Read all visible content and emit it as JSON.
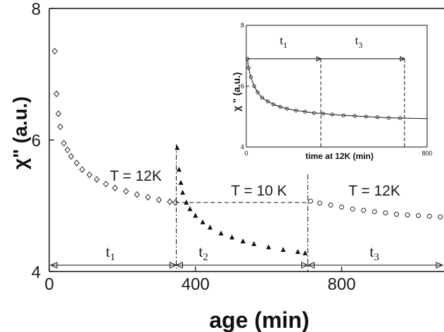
{
  "chart_data": [
    {
      "type": "scatter",
      "title": "",
      "xlabel": "age (min)",
      "ylabel": "χ\" (a.u.)",
      "xlim": [
        0,
        1080
      ],
      "ylim": [
        4,
        8
      ],
      "x_ticks": [
        "0",
        "400",
        "800"
      ],
      "y_ticks": [
        "4",
        "6",
        "8"
      ],
      "grid": false,
      "segments": [
        {
          "marker": "diamond",
          "temperature_label": "T = 12K",
          "interval_label": "t1",
          "x": [
            15,
            20,
            25,
            30,
            40,
            50,
            60,
            75,
            90,
            110,
            130,
            155,
            180,
            210,
            240,
            270,
            300,
            330,
            345
          ],
          "y": [
            7.35,
            6.7,
            6.4,
            6.2,
            5.95,
            5.85,
            5.75,
            5.65,
            5.55,
            5.47,
            5.4,
            5.33,
            5.27,
            5.22,
            5.17,
            5.13,
            5.09,
            5.06,
            5.05
          ]
        },
        {
          "marker": "triangle",
          "temperature_label": "T = 10 K",
          "interval_label": "t2",
          "x": [
            350,
            355,
            360,
            365,
            375,
            385,
            400,
            420,
            440,
            470,
            500,
            530,
            560,
            600,
            640,
            680,
            700
          ],
          "y": [
            5.88,
            5.55,
            5.35,
            5.2,
            5.05,
            4.95,
            4.85,
            4.75,
            4.67,
            4.58,
            4.52,
            4.46,
            4.42,
            4.37,
            4.33,
            4.3,
            4.28
          ]
        },
        {
          "marker": "circle",
          "temperature_label": "T = 12K",
          "interval_label": "t3",
          "x": [
            715,
            740,
            770,
            800,
            830,
            860,
            890,
            920,
            950,
            980,
            1010,
            1040,
            1070
          ],
          "y": [
            5.07,
            5.04,
            5.01,
            4.98,
            4.95,
            4.93,
            4.91,
            4.89,
            4.87,
            4.86,
            4.85,
            4.84,
            4.83
          ]
        }
      ]
    },
    {
      "type": "scatter",
      "role": "inset",
      "xlabel": "time at 12K (min)",
      "ylabel": "χ \" (a.u.)",
      "xlim": [
        0,
        800
      ],
      "ylim": [
        4,
        8
      ],
      "x_ticks": [
        "0",
        "800"
      ],
      "y_ticks": [
        "4",
        "6",
        "8"
      ],
      "interval_labels": [
        "t1",
        "t3"
      ],
      "marker": "circle",
      "x": [
        5,
        10,
        20,
        35,
        50,
        70,
        95,
        120,
        150,
        180,
        220,
        260,
        300,
        340,
        380,
        430,
        480,
        530,
        580,
        630,
        680
      ],
      "y": [
        6.9,
        6.6,
        6.3,
        6.0,
        5.8,
        5.62,
        5.5,
        5.4,
        5.32,
        5.26,
        5.2,
        5.16,
        5.12,
        5.1,
        5.07,
        5.04,
        5.02,
        5.0,
        4.98,
        4.96,
        4.95
      ]
    }
  ]
}
